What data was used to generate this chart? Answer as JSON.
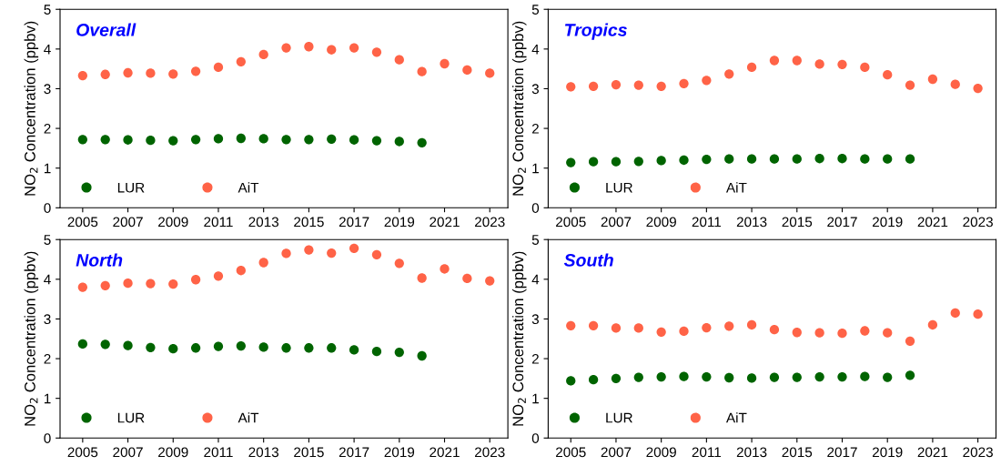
{
  "chart_data": [
    {
      "type": "scatter",
      "title": "Overall",
      "ylabel": "NO$_{2}$ Concentration (ppbv)",
      "xlim": [
        2004,
        2023.8
      ],
      "xticks": [
        2005,
        2007,
        2009,
        2011,
        2013,
        2015,
        2017,
        2019,
        2021,
        2023
      ],
      "ylim": [
        0,
        5
      ],
      "yticks": [
        0,
        1,
        2,
        3,
        4,
        5
      ],
      "legend": "bottom left",
      "marker": "circle",
      "grid": false,
      "series": [
        {
          "name": "LUR",
          "color": "#006400",
          "x": [
            2005,
            2006,
            2007,
            2008,
            2009,
            2010,
            2011,
            2012,
            2013,
            2014,
            2015,
            2016,
            2017,
            2018,
            2019,
            2020
          ],
          "values": [
            1.72,
            1.72,
            1.71,
            1.7,
            1.69,
            1.72,
            1.74,
            1.75,
            1.74,
            1.72,
            1.72,
            1.73,
            1.71,
            1.69,
            1.67,
            1.64
          ]
        },
        {
          "name": "AiT",
          "color": "#ff6347",
          "x": [
            2005,
            2006,
            2007,
            2008,
            2009,
            2010,
            2011,
            2012,
            2013,
            2014,
            2015,
            2016,
            2017,
            2018,
            2019,
            2020,
            2021,
            2022,
            2023
          ],
          "values": [
            3.33,
            3.36,
            3.4,
            3.39,
            3.37,
            3.44,
            3.54,
            3.68,
            3.86,
            4.03,
            4.06,
            3.98,
            4.03,
            3.92,
            3.73,
            3.43,
            3.63,
            3.47,
            3.39
          ]
        }
      ]
    },
    {
      "type": "scatter",
      "title": "Tropics",
      "ylabel": "NO$_{2}$ Concentration (ppbv)",
      "xlim": [
        2004,
        2023.8
      ],
      "xticks": [
        2005,
        2007,
        2009,
        2011,
        2013,
        2015,
        2017,
        2019,
        2021,
        2023
      ],
      "ylim": [
        0,
        5
      ],
      "yticks": [
        0,
        1,
        2,
        3,
        4,
        5
      ],
      "legend": "bottom left",
      "marker": "circle",
      "grid": false,
      "series": [
        {
          "name": "LUR",
          "color": "#006400",
          "x": [
            2005,
            2006,
            2007,
            2008,
            2009,
            2010,
            2011,
            2012,
            2013,
            2014,
            2015,
            2016,
            2017,
            2018,
            2019,
            2020
          ],
          "values": [
            1.14,
            1.16,
            1.16,
            1.17,
            1.19,
            1.2,
            1.22,
            1.23,
            1.23,
            1.23,
            1.23,
            1.24,
            1.24,
            1.23,
            1.23,
            1.23
          ]
        },
        {
          "name": "AiT",
          "color": "#ff6347",
          "x": [
            2005,
            2006,
            2007,
            2008,
            2009,
            2010,
            2011,
            2012,
            2013,
            2014,
            2015,
            2016,
            2017,
            2018,
            2019,
            2020,
            2021,
            2022,
            2023
          ],
          "values": [
            3.05,
            3.06,
            3.1,
            3.09,
            3.06,
            3.13,
            3.21,
            3.37,
            3.54,
            3.71,
            3.71,
            3.62,
            3.61,
            3.54,
            3.35,
            3.09,
            3.24,
            3.11,
            3.01
          ]
        }
      ]
    },
    {
      "type": "scatter",
      "title": "North",
      "ylabel": "NO$_{2}$ Concentration (ppbv)",
      "xlim": [
        2004,
        2023.8
      ],
      "xticks": [
        2005,
        2007,
        2009,
        2011,
        2013,
        2015,
        2017,
        2019,
        2021,
        2023
      ],
      "ylim": [
        0,
        5
      ],
      "yticks": [
        0,
        1,
        2,
        3,
        4,
        5
      ],
      "legend": "bottom left",
      "marker": "circle",
      "grid": false,
      "series": [
        {
          "name": "LUR",
          "color": "#006400",
          "x": [
            2005,
            2006,
            2007,
            2008,
            2009,
            2010,
            2011,
            2012,
            2013,
            2014,
            2015,
            2016,
            2017,
            2018,
            2019,
            2020
          ],
          "values": [
            2.37,
            2.36,
            2.33,
            2.28,
            2.25,
            2.27,
            2.31,
            2.32,
            2.29,
            2.27,
            2.27,
            2.27,
            2.22,
            2.18,
            2.16,
            2.07
          ]
        },
        {
          "name": "AiT",
          "color": "#ff6347",
          "x": [
            2005,
            2006,
            2007,
            2008,
            2009,
            2010,
            2011,
            2012,
            2013,
            2014,
            2015,
            2016,
            2017,
            2018,
            2019,
            2020,
            2021,
            2022,
            2023
          ],
          "values": [
            3.8,
            3.84,
            3.9,
            3.89,
            3.88,
            3.99,
            4.08,
            4.22,
            4.42,
            4.65,
            4.74,
            4.66,
            4.78,
            4.62,
            4.4,
            4.03,
            4.26,
            4.02,
            3.96
          ]
        }
      ]
    },
    {
      "type": "scatter",
      "title": "South",
      "ylabel": "NO$_{2}$ Concentration (ppbv)",
      "xlim": [
        2004,
        2023.8
      ],
      "xticks": [
        2005,
        2007,
        2009,
        2011,
        2013,
        2015,
        2017,
        2019,
        2021,
        2023
      ],
      "ylim": [
        0,
        5
      ],
      "yticks": [
        0,
        1,
        2,
        3,
        4,
        5
      ],
      "legend": "bottom left",
      "marker": "circle",
      "grid": false,
      "series": [
        {
          "name": "LUR",
          "color": "#006400",
          "x": [
            2005,
            2006,
            2007,
            2008,
            2009,
            2010,
            2011,
            2012,
            2013,
            2014,
            2015,
            2016,
            2017,
            2018,
            2019,
            2020
          ],
          "values": [
            1.44,
            1.47,
            1.5,
            1.53,
            1.54,
            1.55,
            1.54,
            1.52,
            1.51,
            1.53,
            1.53,
            1.54,
            1.54,
            1.55,
            1.53,
            1.58
          ]
        },
        {
          "name": "AiT",
          "color": "#ff6347",
          "x": [
            2005,
            2006,
            2007,
            2008,
            2009,
            2010,
            2011,
            2012,
            2013,
            2014,
            2015,
            2016,
            2017,
            2018,
            2019,
            2020,
            2021,
            2022,
            2023
          ],
          "values": [
            2.83,
            2.83,
            2.77,
            2.77,
            2.67,
            2.69,
            2.78,
            2.82,
            2.85,
            2.73,
            2.66,
            2.65,
            2.64,
            2.7,
            2.65,
            2.44,
            2.85,
            3.15,
            3.12
          ]
        }
      ]
    }
  ]
}
